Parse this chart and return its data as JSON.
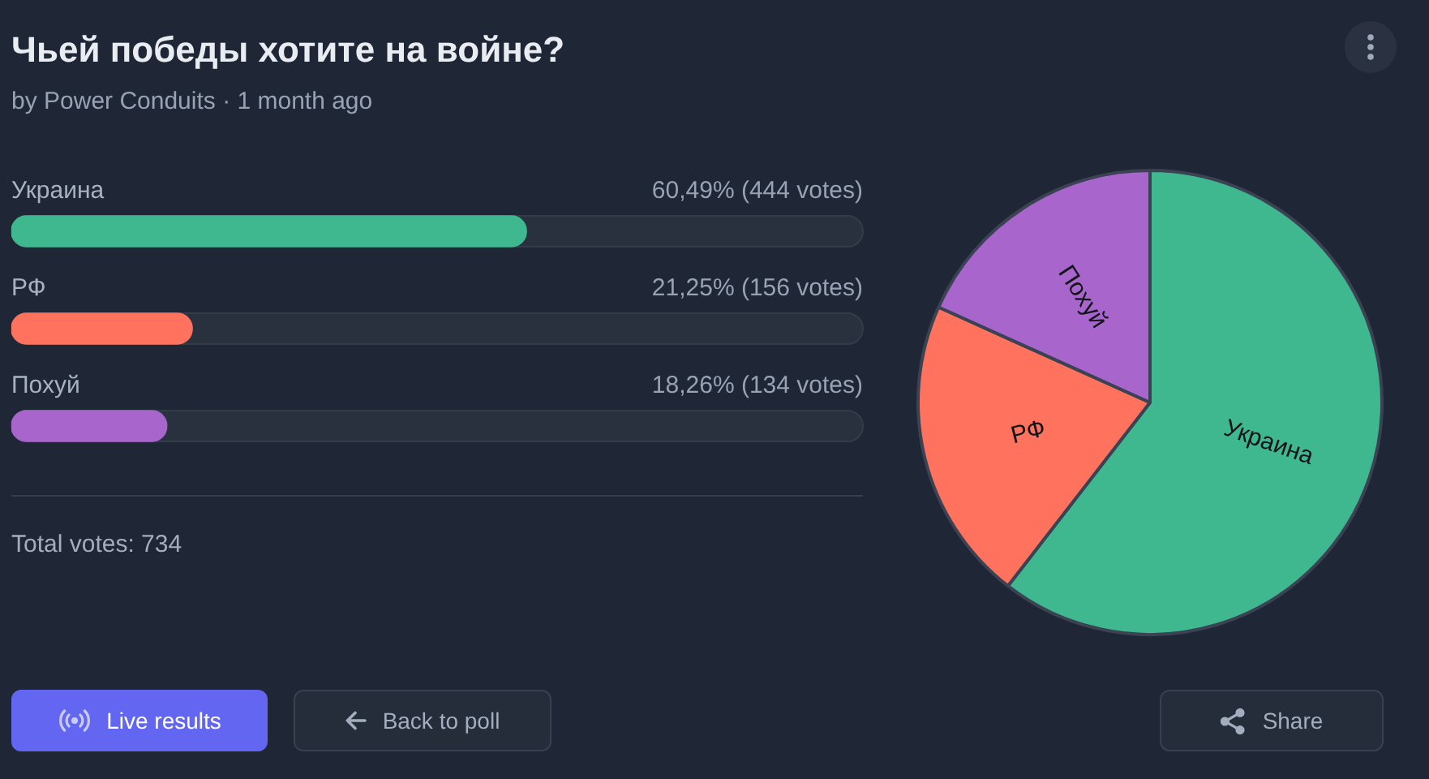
{
  "chart_data": [
    {
      "type": "bar",
      "title": "Чьей победы хотите на войне?",
      "subtitle": "by Power Conduits · 1 month ago",
      "orientation": "horizontal",
      "categories": [
        "Украина",
        "РФ",
        "Похуй"
      ],
      "values": [
        60.49,
        21.25,
        18.26
      ],
      "colors": [
        "#3fb890",
        "#ff725e",
        "#a865cc"
      ],
      "value_labels": [
        "60,49% (444 votes)",
        "21,25% (156 votes)",
        "18,26% (134 votes)"
      ],
      "xlim": [
        0,
        100
      ],
      "tick_labels": "y",
      "annotations": [
        "Total votes: 734",
        "Live results",
        "Back to poll",
        "Share"
      ]
    },
    {
      "type": "pie",
      "categories": [
        "Украина",
        "РФ",
        "Похуй"
      ],
      "values": [
        60.49,
        21.25,
        18.26
      ],
      "colors": [
        "#3fb890",
        "#ff725e",
        "#a865cc"
      ]
    }
  ]
}
